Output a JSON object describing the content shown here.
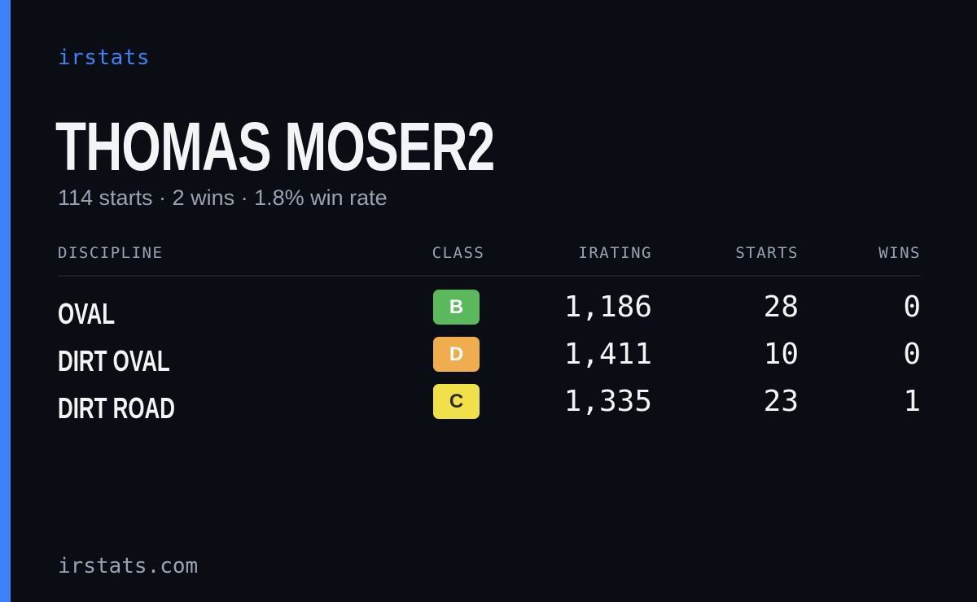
{
  "brand": "irstats",
  "driver": {
    "name": "THOMAS MOSER2",
    "summary": "114 starts · 2 wins · 1.8% win rate"
  },
  "table": {
    "headers": {
      "discipline": "DISCIPLINE",
      "class": "CLASS",
      "irating": "IRATING",
      "starts": "STARTS",
      "wins": "WINS"
    },
    "rows": [
      {
        "discipline": "OVAL",
        "class": "B",
        "class_color": "#5cb85c",
        "class_text_color": "#ffffff",
        "irating": "1,186",
        "starts": "28",
        "wins": "0"
      },
      {
        "discipline": "DIRT OVAL",
        "class": "D",
        "class_color": "#f0ad4e",
        "class_text_color": "#ffffff",
        "irating": "1,411",
        "starts": "10",
        "wins": "0"
      },
      {
        "discipline": "DIRT ROAD",
        "class": "C",
        "class_color": "#f0e14a",
        "class_text_color": "#2b2b2b",
        "irating": "1,335",
        "starts": "23",
        "wins": "1"
      }
    ]
  },
  "footer": "irstats.com",
  "colors": {
    "background": "#0a0d14",
    "accent": "#3b82f6",
    "text_primary": "#f3f4f6",
    "text_muted": "#9aa3b2"
  }
}
